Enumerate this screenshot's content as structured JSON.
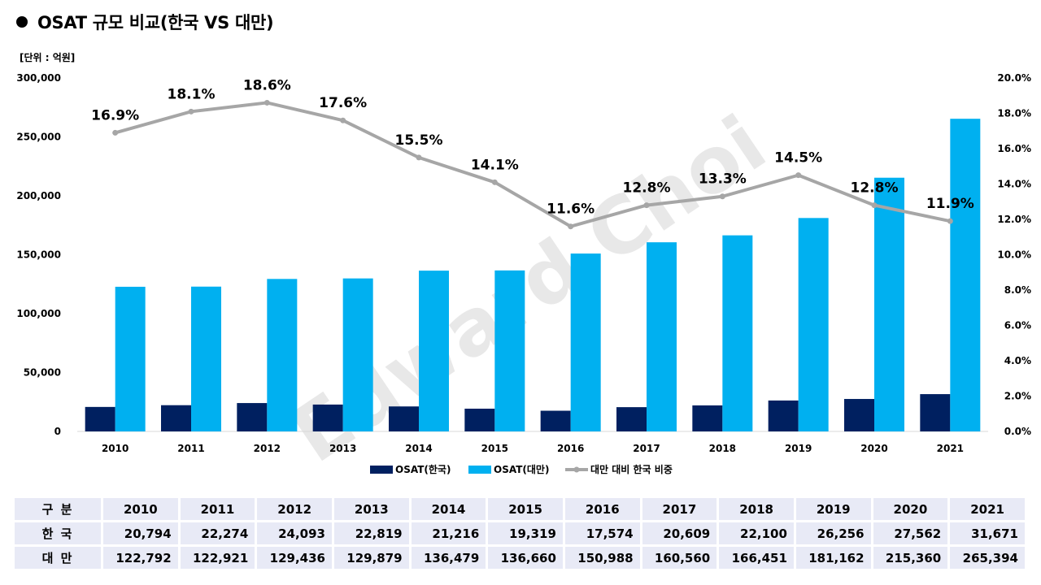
{
  "title": "OSAT 규모 비교(한국 VS 대만)",
  "unit_label": "[단위 : 억원]",
  "watermark": "Edward Choi",
  "colors": {
    "korea": "#002060",
    "taiwan": "#00b0f0",
    "ratio": "#a6a6a6"
  },
  "chart_data": {
    "type": "bar",
    "categories": [
      "2010",
      "2011",
      "2012",
      "2013",
      "2014",
      "2015",
      "2016",
      "2017",
      "2018",
      "2019",
      "2020",
      "2021"
    ],
    "series": [
      {
        "name": "OSAT(한국)",
        "type": "bar",
        "axis": "left",
        "values": [
          20794,
          22274,
          24093,
          22819,
          21216,
          19319,
          17574,
          20609,
          22100,
          26256,
          27562,
          31671
        ]
      },
      {
        "name": "OSAT(대만)",
        "type": "bar",
        "axis": "left",
        "values": [
          122792,
          122921,
          129436,
          129879,
          136479,
          136660,
          150988,
          160560,
          166451,
          181162,
          215360,
          265394
        ]
      },
      {
        "name": "대만 대비 한국 비중",
        "type": "line",
        "axis": "right",
        "values": [
          16.9,
          18.1,
          18.6,
          17.6,
          15.5,
          14.1,
          11.6,
          12.8,
          13.3,
          14.5,
          12.8,
          11.9
        ],
        "labels": [
          "16.9%",
          "18.1%",
          "18.6%",
          "17.6%",
          "15.5%",
          "14.1%",
          "11.6%",
          "12.8%",
          "13.3%",
          "14.5%",
          "12.8%",
          "11.9%"
        ]
      }
    ],
    "y_left": {
      "min": 0,
      "max": 300000,
      "ticks": [
        0,
        50000,
        100000,
        150000,
        200000,
        250000,
        300000
      ],
      "tick_labels": [
        "0",
        "50,000",
        "100,000",
        "150,000",
        "200,000",
        "250,000",
        "300,000"
      ]
    },
    "y_right": {
      "min": 0,
      "max": 20,
      "ticks": [
        0,
        2,
        4,
        6,
        8,
        10,
        12,
        14,
        16,
        18,
        20
      ],
      "tick_labels": [
        "0.0%",
        "2.0%",
        "4.0%",
        "6.0%",
        "8.0%",
        "10.0%",
        "12.0%",
        "14.0%",
        "16.0%",
        "18.0%",
        "20.0%"
      ]
    },
    "legend_position": "bottom",
    "grid": false
  },
  "table": {
    "header_label": "구 분",
    "years": [
      "2010",
      "2011",
      "2012",
      "2013",
      "2014",
      "2015",
      "2016",
      "2017",
      "2018",
      "2019",
      "2020",
      "2021"
    ],
    "rows": [
      {
        "label": "한 국",
        "values": [
          "20,794",
          "22,274",
          "24,093",
          "22,819",
          "21,216",
          "19,319",
          "17,574",
          "20,609",
          "22,100",
          "26,256",
          "27,562",
          "31,671"
        ]
      },
      {
        "label": "대 만",
        "values": [
          "122,792",
          "122,921",
          "129,436",
          "129,879",
          "136,479",
          "136,660",
          "150,988",
          "160,560",
          "166,451",
          "181,162",
          "215,360",
          "265,394"
        ]
      }
    ]
  }
}
